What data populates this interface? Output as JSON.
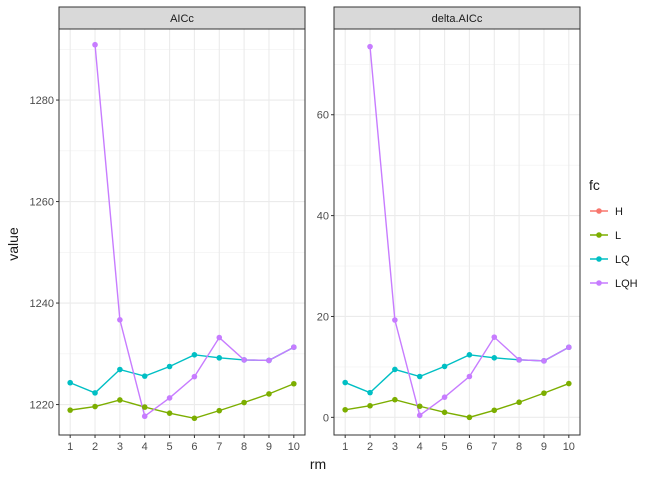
{
  "chart_data": {
    "type": "line",
    "xlabel": "rm",
    "ylabel": "value",
    "x": [
      1,
      2,
      3,
      4,
      5,
      6,
      7,
      8,
      9,
      10
    ],
    "legend": {
      "title": "fc",
      "placement": "right",
      "entries": [
        {
          "name": "H",
          "color": "#F8766D"
        },
        {
          "name": "L",
          "color": "#7CAE00"
        },
        {
          "name": "LQ",
          "color": "#00BFC4"
        },
        {
          "name": "LQH",
          "color": "#C77CFF"
        }
      ]
    },
    "grid": true,
    "panels": [
      {
        "title": "AICc",
        "ylim": [
          1214,
          1294
        ],
        "yticks": [
          1220,
          1240,
          1260,
          1280
        ],
        "series": [
          {
            "name": "H",
            "color": "#F8766D",
            "values": [
              null,
              null,
              null,
              null,
              null,
              null,
              null,
              null,
              null,
              null
            ]
          },
          {
            "name": "L",
            "color": "#7CAE00",
            "values": [
              1218.9,
              1219.6,
              1220.9,
              1219.5,
              1218.3,
              1217.3,
              1218.8,
              1220.4,
              1222.1,
              1224.1
            ]
          },
          {
            "name": "LQ",
            "color": "#00BFC4",
            "values": [
              1224.3,
              1222.3,
              1226.9,
              1225.6,
              1227.5,
              1229.8,
              1229.2,
              1228.8,
              1228.7,
              1231.3
            ]
          },
          {
            "name": "LQH",
            "color": "#C77CFF",
            "values": [
              null,
              1290.9,
              1236.7,
              1217.7,
              1221.3,
              1225.5,
              1233.2,
              1228.8,
              1228.7,
              1231.3
            ]
          }
        ]
      },
      {
        "title": "delta.AICc",
        "ylim": [
          -3.5,
          77
        ],
        "yticks": [
          0,
          20,
          40,
          60
        ],
        "series": [
          {
            "name": "H",
            "color": "#F8766D",
            "values": [
              null,
              null,
              null,
              null,
              null,
              null,
              null,
              null,
              null,
              null
            ]
          },
          {
            "name": "L",
            "color": "#7CAE00",
            "values": [
              1.5,
              2.3,
              3.5,
              2.2,
              1.0,
              0.0,
              1.4,
              3.0,
              4.8,
              6.7
            ]
          },
          {
            "name": "LQ",
            "color": "#00BFC4",
            "values": [
              6.9,
              4.9,
              9.5,
              8.1,
              10.1,
              12.4,
              11.8,
              11.4,
              11.2,
              13.9
            ]
          },
          {
            "name": "LQH",
            "color": "#C77CFF",
            "values": [
              null,
              73.5,
              19.3,
              0.4,
              4.0,
              8.1,
              15.9,
              11.4,
              11.2,
              13.9
            ]
          }
        ]
      }
    ]
  }
}
